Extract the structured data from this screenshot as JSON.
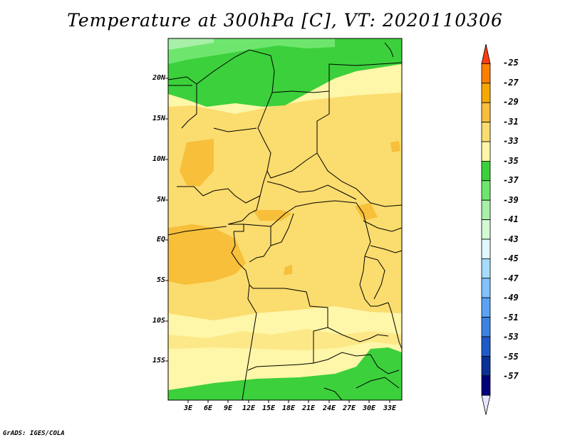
{
  "title": "Temperature at 300hPa [C], VT: 2020110306",
  "credit": "GrADS: IGES/COLA",
  "lat_labels": [
    "20N",
    "15N",
    "10N",
    "5N",
    "EQ",
    "5S",
    "10S",
    "15S"
  ],
  "lon_labels": [
    "3E",
    "6E",
    "9E",
    "12E",
    "15E",
    "18E",
    "21E",
    "24E",
    "27E",
    "30E",
    "33E"
  ],
  "colorbar": {
    "labels": [
      "-25",
      "-27",
      "-29",
      "-31",
      "-33",
      "-35",
      "-37",
      "-39",
      "-41",
      "-43",
      "-45",
      "-47",
      "-49",
      "-51",
      "-53",
      "-55",
      "-57"
    ],
    "colors": [
      "#ff3c0e",
      "#ff7f00",
      "#f5a800",
      "#f7bf3a",
      "#fbdc6e",
      "#fef6a8",
      "#3cd03c",
      "#6ee66e",
      "#a8f0a8",
      "#d4fad4",
      "#e0f8ff",
      "#a6dcff",
      "#82c2ff",
      "#5aa2f5",
      "#3c82e1",
      "#1e5ac8",
      "#0a3296",
      "#00007a",
      "#e6e6ff"
    ]
  },
  "legend_colors": {
    "green_dark": "#3cd03c",
    "green_mid": "#6ee66e",
    "green_light": "#a8f0a8",
    "yellow_pale": "#fef6a8",
    "yellow": "#fbdc6e",
    "orange_light": "#f7bf3a",
    "orange": "#f5a800"
  }
}
